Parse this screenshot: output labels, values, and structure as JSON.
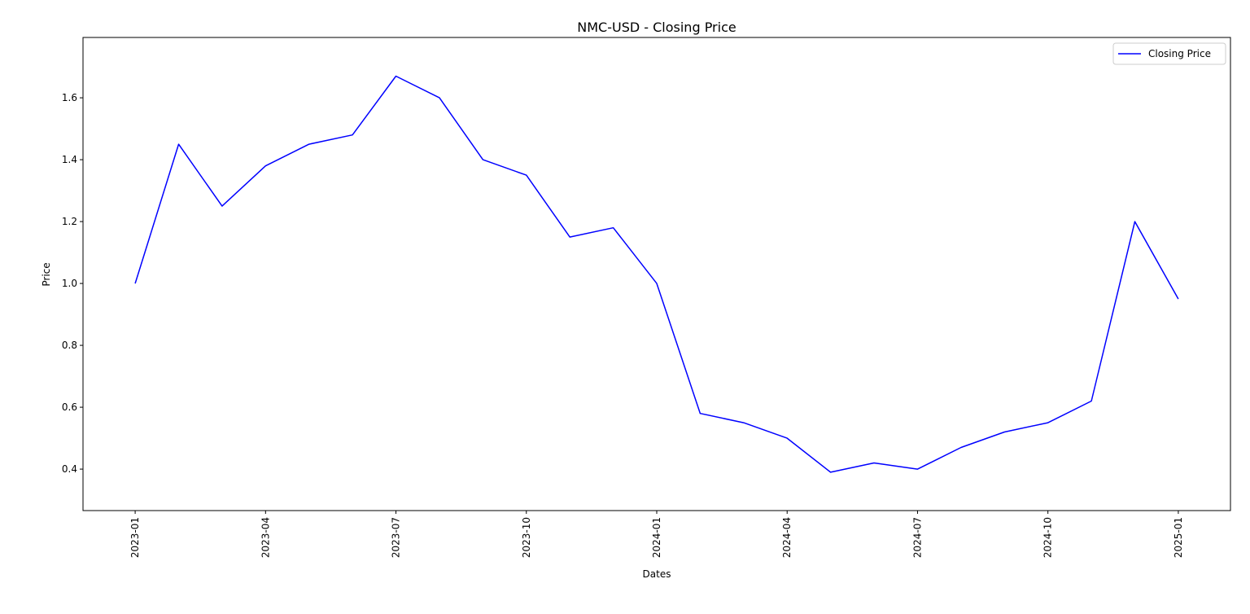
{
  "chart_data": {
    "type": "line",
    "title": "NMC-USD - Closing Price",
    "x_label": "Dates",
    "y_label": "Price",
    "x": [
      "2023-01",
      "2023-02",
      "2023-03",
      "2023-04",
      "2023-05",
      "2023-06",
      "2023-07",
      "2023-08",
      "2023-09",
      "2023-10",
      "2023-11",
      "2023-12",
      "2024-01",
      "2024-02",
      "2024-03",
      "2024-04",
      "2024-05",
      "2024-06",
      "2024-07",
      "2024-08",
      "2024-09",
      "2024-10",
      "2024-11",
      "2024-12",
      "2025-01"
    ],
    "series": [
      {
        "name": "Closing Price",
        "color": "#0000ff",
        "values": [
          1.0,
          1.45,
          1.25,
          1.38,
          1.45,
          1.48,
          1.67,
          1.6,
          1.4,
          1.35,
          1.15,
          1.18,
          1.0,
          0.58,
          0.55,
          0.5,
          0.39,
          0.42,
          0.4,
          0.47,
          0.52,
          0.55,
          0.62,
          1.2,
          0.95
        ]
      }
    ],
    "xticks": [
      "2023-01",
      "2023-04",
      "2023-07",
      "2023-10",
      "2024-01",
      "2024-04",
      "2024-07",
      "2024-10",
      "2025-01"
    ],
    "ylim": [
      0.266,
      1.795
    ],
    "yticks": [
      0.4,
      0.6,
      0.8,
      {
        "value": 1,
        "label": "1.0"
      },
      1.2,
      1.4,
      1.6
    ],
    "legend": "upper right"
  }
}
